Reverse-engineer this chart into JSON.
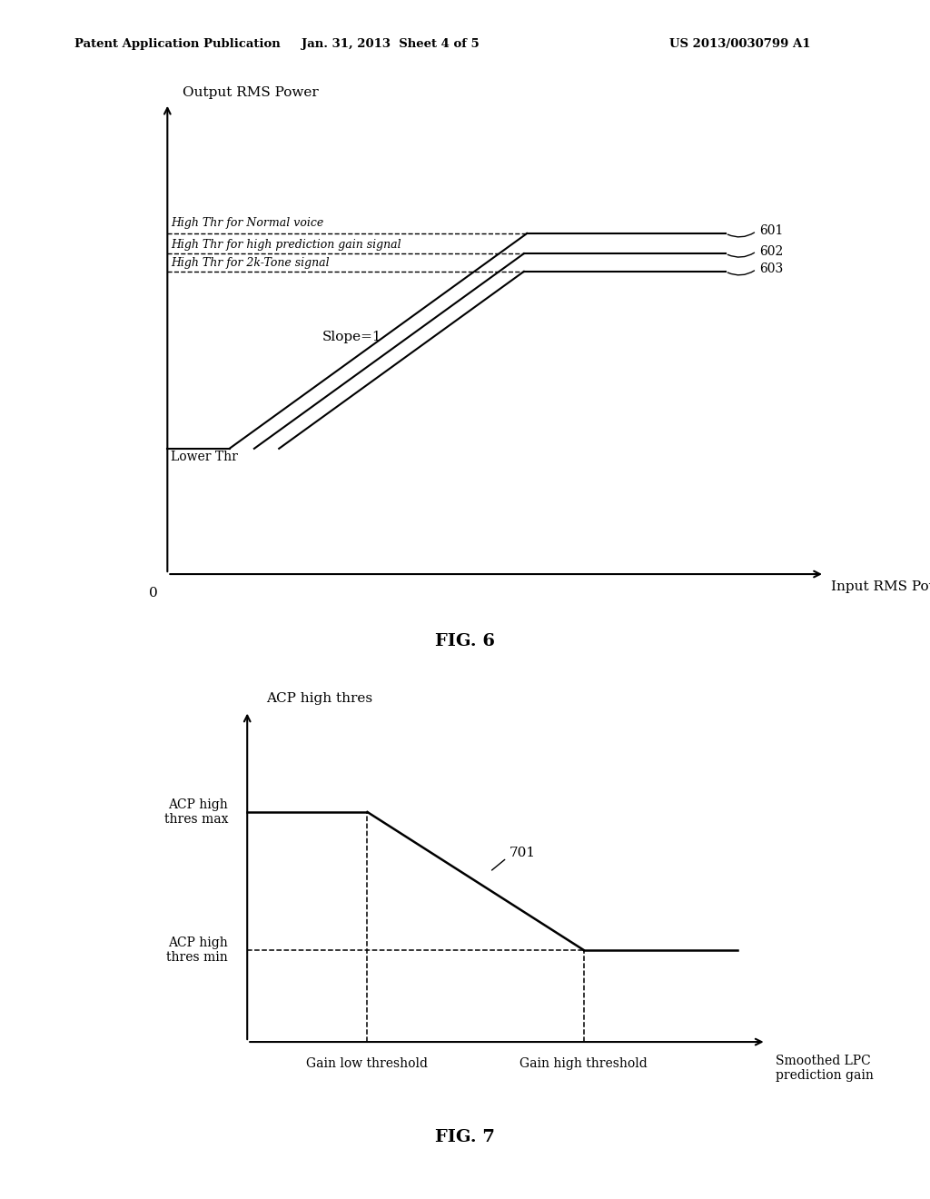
{
  "header_left": "Patent Application Publication",
  "header_mid": "Jan. 31, 2013  Sheet 4 of 5",
  "header_right": "US 2013/0030799 A1",
  "fig6": {
    "title": "FIG. 6",
    "ylabel": "Output RMS Power",
    "xlabel": "Input RMS Power",
    "lower_thr_label": "Lower Thr",
    "slope_label": "Slope=1",
    "high_thr_normal": "High Thr for Normal voice",
    "high_thr_hpg": "High Thr for high prediction gain signal",
    "high_thr_2k": "High Thr for 2k-Tone signal",
    "label_601": "601",
    "label_602": "602",
    "label_603": "603"
  },
  "fig7": {
    "title": "FIG. 7",
    "ylabel_top": "ACP high thres",
    "xlabel": "Smoothed LPC\nprediction gain",
    "label_max": "ACP high\nthres max",
    "label_min": "ACP high\nthres min",
    "gain_low": "Gain low threshold",
    "gain_high": "Gain high threshold",
    "label_701": "701"
  },
  "bg_color": "#ffffff",
  "line_color": "#000000",
  "text_color": "#000000"
}
